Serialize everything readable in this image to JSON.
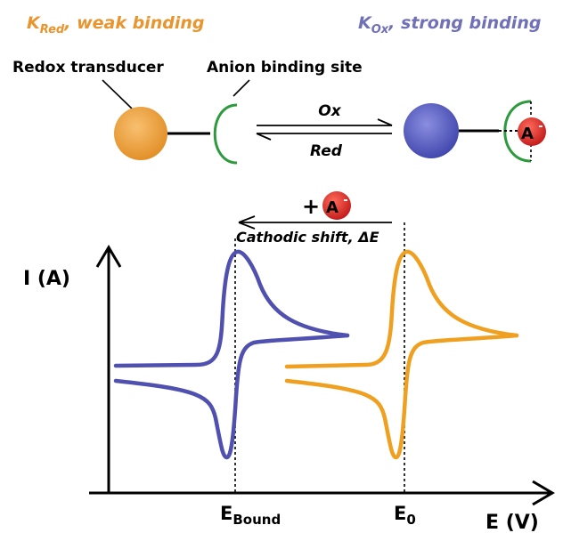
{
  "header": {
    "k_red_symbol": "K",
    "k_red_sub": "Red",
    "k_red_text": ", weak binding",
    "k_ox_symbol": "K",
    "k_ox_sub": "Ox",
    "k_ox_text": ", strong binding"
  },
  "scheme": {
    "redox_transducer_label": "Redox transducer",
    "anion_binding_site_label": "Anion binding site",
    "ox_label": "Ox",
    "red_label": "Red",
    "anion_symbol": "A",
    "anion_charge": "-"
  },
  "shift": {
    "plus": "+",
    "anion_symbol": "A",
    "anion_charge": "-",
    "label": "Cathodic shift, ΔE"
  },
  "axes": {
    "y_label": "I (A)",
    "x_label": "E (V)",
    "e_bound_main": "E",
    "e_bound_sub": "Bound",
    "e0_main": "E",
    "e0_sub": "0"
  },
  "colors": {
    "orange": "#f0a020",
    "blue": "#5050b0",
    "green": "#2e9a3e",
    "red": "#d42020",
    "black": "#000000",
    "k_red_text": "#e89530",
    "k_ox_text": "#7070b8"
  }
}
